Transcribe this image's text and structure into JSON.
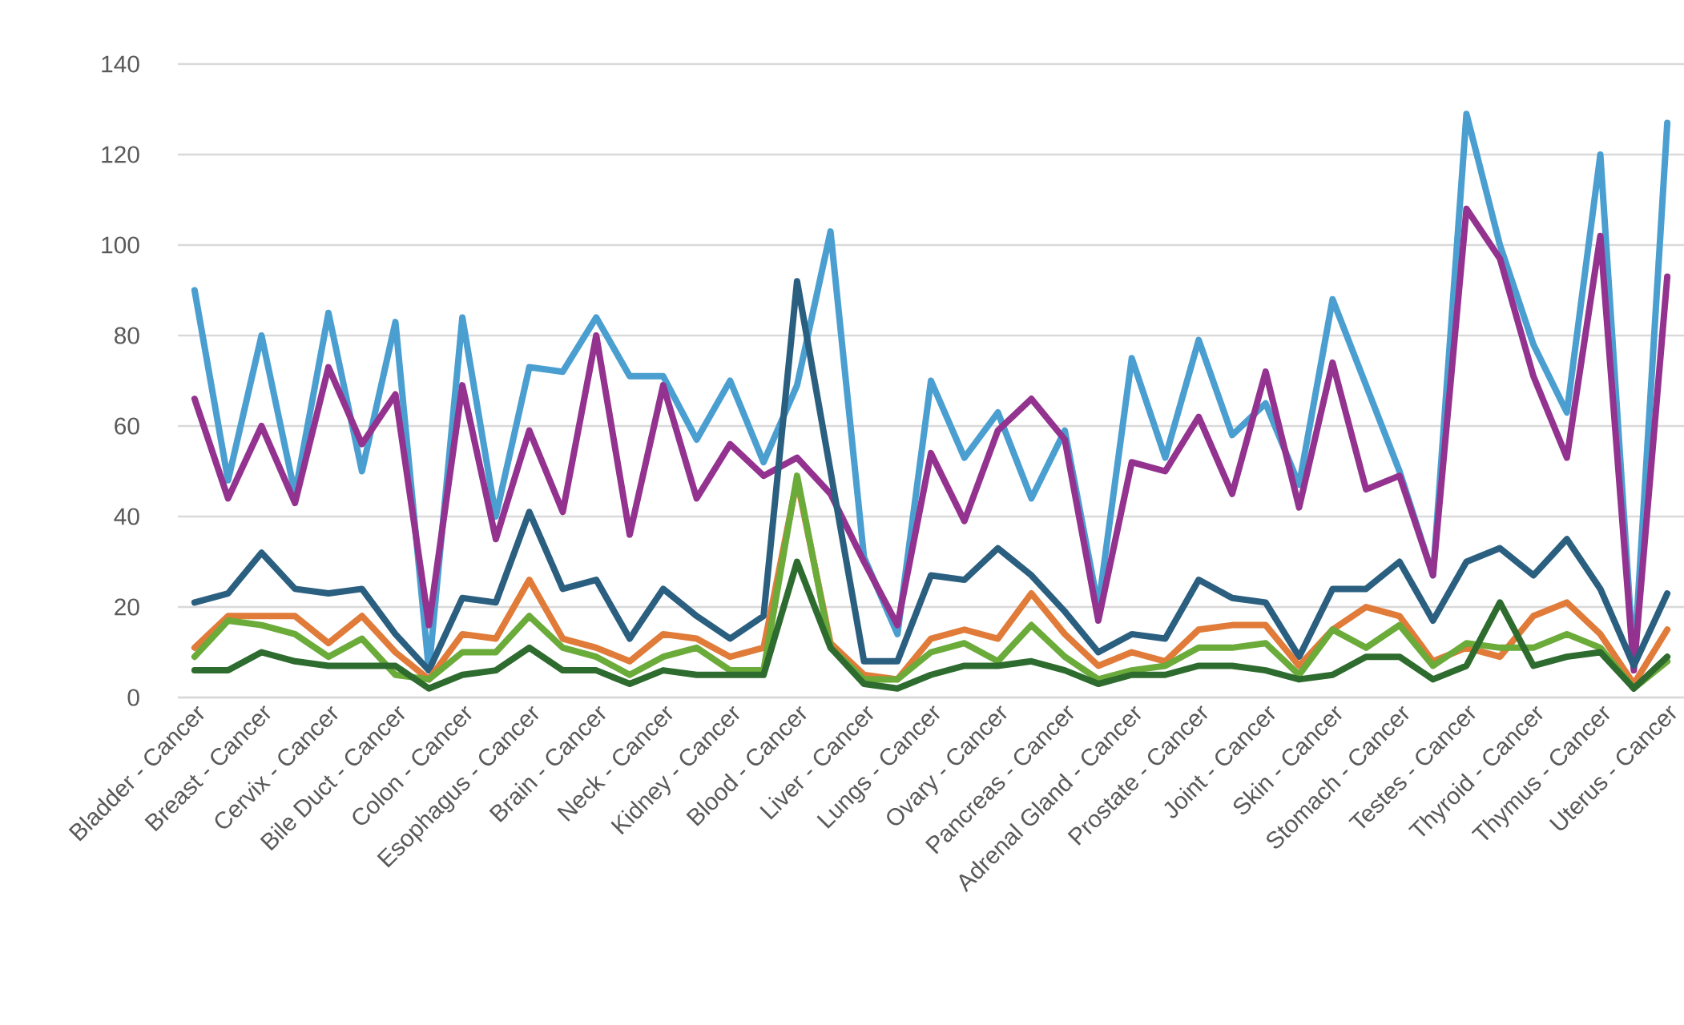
{
  "chart_data": {
    "type": "line",
    "categories": [
      "Bladder - Cancer",
      null,
      "Breast - Cancer",
      null,
      "Cervix - Cancer",
      null,
      "Bile Duct - Cancer",
      null,
      "Colon - Cancer",
      null,
      "Esophagus - Cancer",
      null,
      "Brain - Cancer",
      null,
      "Neck - Cancer",
      null,
      "Kidney - Cancer",
      null,
      "Blood - Cancer",
      null,
      "Liver - Cancer",
      null,
      "Lungs - Cancer",
      null,
      "Ovary - Cancer",
      null,
      "Pancreas - Cancer",
      null,
      "Adrenal Gland - Cancer",
      null,
      "Prostate - Cancer",
      null,
      "Joint - Cancer",
      null,
      "Skin - Cancer",
      null,
      "Stomach - Cancer",
      null,
      "Testes - Cancer",
      null,
      "Thyroid - Cancer",
      null,
      "Thymus - Cancer",
      null,
      "Uterus - Cancer"
    ],
    "series": [
      {
        "color": "#4a9fd0",
        "values": [
          90,
          48,
          80,
          45,
          85,
          50,
          83,
          6,
          84,
          40,
          73,
          72,
          84,
          71,
          71,
          57,
          70,
          52,
          69,
          103,
          31,
          14,
          70,
          53,
          63,
          44,
          59,
          20,
          75,
          53,
          79,
          58,
          65,
          47,
          88,
          69,
          50,
          27,
          129,
          100,
          78,
          63,
          120,
          7,
          127
        ]
      },
      {
        "color": "#93338f",
        "values": [
          66,
          44,
          60,
          43,
          73,
          56,
          67,
          16,
          69,
          35,
          59,
          41,
          80,
          36,
          69,
          44,
          56,
          49,
          53,
          45,
          30,
          16,
          54,
          39,
          59,
          66,
          57,
          17,
          52,
          50,
          62,
          45,
          72,
          42,
          74,
          46,
          49,
          27,
          108,
          97,
          71,
          53,
          102,
          6,
          93
        ]
      },
      {
        "color": "#2b5f80",
        "values": [
          21,
          23,
          32,
          24,
          23,
          24,
          14,
          6,
          22,
          21,
          41,
          24,
          26,
          13,
          24,
          18,
          13,
          18,
          92,
          50,
          8,
          8,
          27,
          26,
          33,
          27,
          19,
          10,
          14,
          13,
          26,
          22,
          21,
          9,
          24,
          24,
          30,
          17,
          30,
          33,
          27,
          35,
          24,
          7,
          23
        ]
      },
      {
        "color": "#e07b39",
        "values": [
          11,
          18,
          18,
          18,
          12,
          18,
          10,
          4,
          14,
          13,
          26,
          13,
          11,
          8,
          14,
          13,
          9,
          11,
          48,
          12,
          5,
          4,
          13,
          15,
          13,
          23,
          14,
          7,
          10,
          8,
          15,
          16,
          16,
          7,
          15,
          20,
          18,
          8,
          11,
          9,
          18,
          21,
          14,
          3,
          15
        ]
      },
      {
        "color": "#6aab3a",
        "values": [
          9,
          17,
          16,
          14,
          9,
          13,
          5,
          4,
          10,
          10,
          18,
          11,
          9,
          5,
          9,
          11,
          6,
          6,
          49,
          11,
          4,
          4,
          10,
          12,
          8,
          16,
          9,
          4,
          6,
          7,
          11,
          11,
          12,
          5,
          15,
          11,
          16,
          7,
          12,
          11,
          11,
          14,
          11,
          2,
          8
        ]
      },
      {
        "color": "#2e6b2e",
        "values": [
          6,
          6,
          10,
          8,
          7,
          7,
          7,
          2,
          5,
          6,
          11,
          6,
          6,
          3,
          6,
          5,
          5,
          5,
          30,
          11,
          3,
          2,
          5,
          7,
          7,
          8,
          6,
          3,
          5,
          5,
          7,
          7,
          6,
          4,
          5,
          9,
          9,
          4,
          7,
          21,
          7,
          9,
          10,
          2,
          9
        ]
      }
    ],
    "ylim": [
      0,
      140
    ],
    "yticks": [
      0,
      20,
      40,
      60,
      80,
      100,
      120,
      140
    ],
    "grid": "y"
  }
}
